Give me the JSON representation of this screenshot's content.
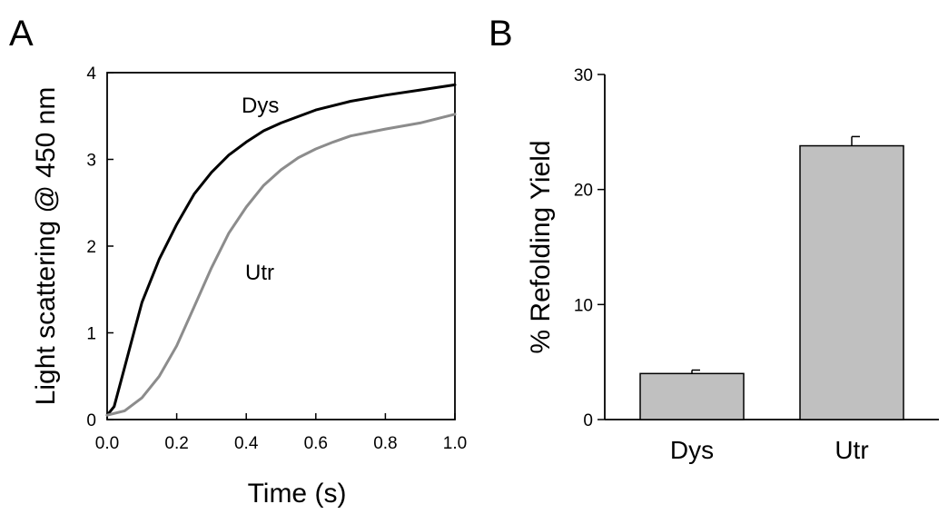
{
  "panels": {
    "a": {
      "letter": "A"
    },
    "b": {
      "letter": "B"
    }
  },
  "chart_data": [
    {
      "panel": "A",
      "type": "line",
      "title": "",
      "xlabel": "Time (s)",
      "ylabel": "Light scattering @ 450 nm",
      "xlim": [
        0,
        1.0
      ],
      "ylim": [
        0,
        4
      ],
      "xticks": [
        "0.0",
        "0.2",
        "0.4",
        "0.6",
        "0.8",
        "1.0"
      ],
      "yticks": [
        "0",
        "1",
        "2",
        "3",
        "4"
      ],
      "grid": false,
      "series": [
        {
          "name": "Dys",
          "color": "#000000",
          "x": [
            0.0,
            0.02,
            0.05,
            0.08,
            0.1,
            0.15,
            0.2,
            0.25,
            0.3,
            0.35,
            0.4,
            0.45,
            0.5,
            0.6,
            0.7,
            0.8,
            0.9,
            1.0
          ],
          "y": [
            0.05,
            0.15,
            0.6,
            1.05,
            1.35,
            1.85,
            2.25,
            2.6,
            2.85,
            3.05,
            3.2,
            3.33,
            3.42,
            3.57,
            3.67,
            3.74,
            3.8,
            3.86
          ]
        },
        {
          "name": "Utr",
          "color": "#8c8c8c",
          "x": [
            0.0,
            0.05,
            0.1,
            0.15,
            0.2,
            0.25,
            0.3,
            0.35,
            0.4,
            0.45,
            0.5,
            0.55,
            0.6,
            0.65,
            0.7,
            0.8,
            0.9,
            1.0
          ],
          "y": [
            0.05,
            0.1,
            0.25,
            0.5,
            0.85,
            1.3,
            1.75,
            2.15,
            2.45,
            2.7,
            2.88,
            3.02,
            3.12,
            3.2,
            3.27,
            3.35,
            3.42,
            3.52
          ]
        }
      ]
    },
    {
      "panel": "B",
      "type": "bar",
      "title": "",
      "xlabel": "",
      "ylabel": "% Refolding Yield",
      "categories": [
        "Dys",
        "Utr"
      ],
      "values": [
        4.0,
        23.8
      ],
      "errors": [
        0.3,
        0.8
      ],
      "ylim": [
        0,
        30
      ],
      "yticks": [
        "0",
        "10",
        "20",
        "30"
      ],
      "grid": false,
      "bar_color": "#c0c0c0"
    }
  ]
}
